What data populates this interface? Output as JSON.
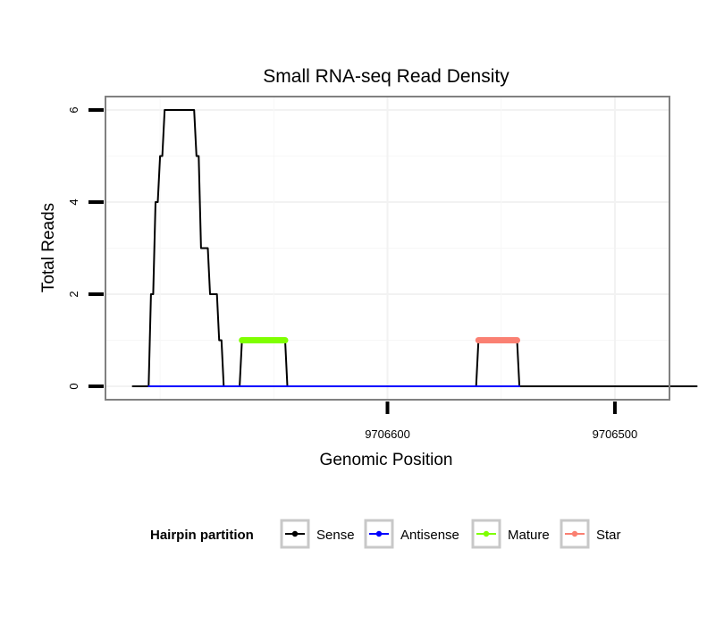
{
  "chart_data": {
    "type": "line",
    "title": "Small RNA-seq Read Density",
    "xlabel": "Genomic Position",
    "ylabel": "Total Reads",
    "xlim": [
      9706724,
      9706476
    ],
    "ylim": [
      0,
      6
    ],
    "x_reversed": true,
    "x_ticks": [
      {
        "value": 9706600,
        "label": "9706600"
      },
      {
        "value": 9706500,
        "label": "9706500"
      }
    ],
    "y_ticks": [
      {
        "value": 0,
        "label": "0"
      },
      {
        "value": 2,
        "label": "2"
      },
      {
        "value": 4,
        "label": "4"
      },
      {
        "value": 6,
        "label": "6"
      }
    ],
    "grid": true,
    "legend": {
      "title": "Hairpin partition",
      "position": "bottom",
      "entries": [
        {
          "name": "Sense",
          "color": "#000000"
        },
        {
          "name": "Antisense",
          "color": "#0000ff"
        },
        {
          "name": "Mature",
          "color": "#7fff00"
        },
        {
          "name": "Star",
          "color": "#fa8072"
        }
      ]
    },
    "series": [
      {
        "name": "Sense",
        "color": "#000000",
        "width": 2,
        "points": [
          [
            9706712,
            0
          ],
          [
            9706705,
            0
          ],
          [
            9706704,
            2
          ],
          [
            9706703,
            2
          ],
          [
            9706702,
            4
          ],
          [
            9706701,
            4
          ],
          [
            9706700,
            5
          ],
          [
            9706699,
            5
          ],
          [
            9706698,
            6
          ],
          [
            9706685,
            6
          ],
          [
            9706684,
            5
          ],
          [
            9706683,
            5
          ],
          [
            9706682,
            3
          ],
          [
            9706679,
            3
          ],
          [
            9706678,
            2
          ],
          [
            9706675,
            2
          ],
          [
            9706674,
            1
          ],
          [
            9706673,
            1
          ],
          [
            9706672,
            0
          ],
          [
            9706665,
            0
          ],
          [
            9706664,
            1
          ],
          [
            9706645,
            1
          ],
          [
            9706644,
            0
          ],
          [
            9706561,
            0
          ],
          [
            9706560,
            1
          ],
          [
            9706543,
            1
          ],
          [
            9706542,
            0
          ],
          [
            9706464,
            0
          ]
        ]
      },
      {
        "name": "Antisense",
        "color": "#0000ff",
        "width": 2,
        "points": [
          [
            9706705,
            0
          ],
          [
            9706644,
            0
          ],
          [
            9706561,
            0
          ],
          [
            9706542,
            0
          ]
        ]
      },
      {
        "name": "Mature",
        "color": "#7fff00",
        "width": 7,
        "points": [
          [
            9706664,
            1
          ],
          [
            9706645,
            1
          ]
        ]
      },
      {
        "name": "Star",
        "color": "#fa8072",
        "width": 7,
        "points": [
          [
            9706560,
            1
          ],
          [
            9706543,
            1
          ]
        ]
      }
    ]
  }
}
